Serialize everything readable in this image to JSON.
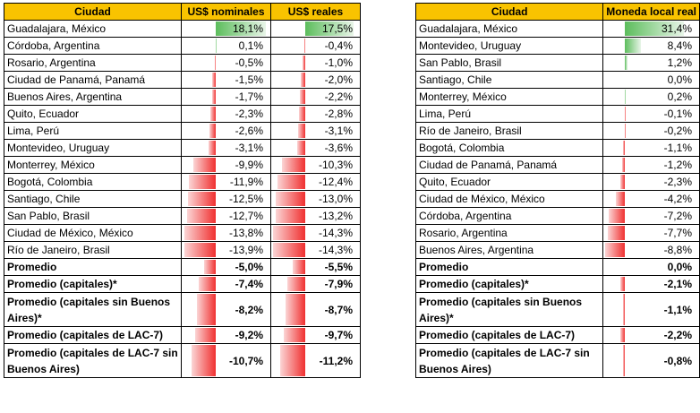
{
  "table1": {
    "headers": [
      "Ciudad",
      "US$ nominales",
      "US$ reales"
    ],
    "rows": [
      {
        "city": "Guadalajara, México",
        "nominal": "18,1%",
        "nominal_v": 18.1,
        "real": "17,5%",
        "real_v": 17.5
      },
      {
        "city": "Córdoba, Argentina",
        "nominal": "0,1%",
        "nominal_v": 0.1,
        "real": "-0,4%",
        "real_v": -0.4
      },
      {
        "city": "Rosario, Argentina",
        "nominal": "-0,5%",
        "nominal_v": -0.5,
        "real": "-1,0%",
        "real_v": -1.0
      },
      {
        "city": "Ciudad de Panamá, Panamá",
        "nominal": "-1,5%",
        "nominal_v": -1.5,
        "real": "-2,0%",
        "real_v": -2.0
      },
      {
        "city": "Buenos Aires, Argentina",
        "nominal": "-1,7%",
        "nominal_v": -1.7,
        "real": "-2,2%",
        "real_v": -2.2
      },
      {
        "city": "Quito, Ecuador",
        "nominal": "-2,3%",
        "nominal_v": -2.3,
        "real": "-2,8%",
        "real_v": -2.8
      },
      {
        "city": "Lima, Perú",
        "nominal": "-2,6%",
        "nominal_v": -2.6,
        "real": "-3,1%",
        "real_v": -3.1
      },
      {
        "city": "Montevideo, Uruguay",
        "nominal": "-3,1%",
        "nominal_v": -3.1,
        "real": "-3,6%",
        "real_v": -3.6
      },
      {
        "city": "Monterrey, México",
        "nominal": "-9,9%",
        "nominal_v": -9.9,
        "real": "-10,3%",
        "real_v": -10.3
      },
      {
        "city": "Bogotá, Colombia",
        "nominal": "-11,9%",
        "nominal_v": -11.9,
        "real": "-12,4%",
        "real_v": -12.4
      },
      {
        "city": "Santiago, Chile",
        "nominal": "-12,5%",
        "nominal_v": -12.5,
        "real": "-13,0%",
        "real_v": -13.0
      },
      {
        "city": "San Pablo, Brasil",
        "nominal": "-12,7%",
        "nominal_v": -12.7,
        "real": "-13,2%",
        "real_v": -13.2
      },
      {
        "city": "Ciudad de México, México",
        "nominal": "-13,8%",
        "nominal_v": -13.8,
        "real": "-14,3%",
        "real_v": -14.3
      },
      {
        "city": "Río de Janeiro, Brasil",
        "nominal": "-13,9%",
        "nominal_v": -13.9,
        "real": "-14,3%",
        "real_v": -14.3
      },
      {
        "city": "Promedio",
        "nominal": "-5,0%",
        "nominal_v": -5.0,
        "real": "-5,5%",
        "real_v": -5.5,
        "bold": true
      },
      {
        "city": "Promedio (capitales)*",
        "nominal": "-7,4%",
        "nominal_v": -7.4,
        "real": "-7,9%",
        "real_v": -7.9,
        "bold": true
      },
      {
        "city": "Promedio (capitales sin Buenos Aires)*",
        "nominal": "-8,2%",
        "nominal_v": -8.2,
        "real": "-8,7%",
        "real_v": -8.7,
        "bold": true,
        "tall": true
      },
      {
        "city": "Promedio (capitales de LAC-7)",
        "nominal": "-9,2%",
        "nominal_v": -9.2,
        "real": "-9,7%",
        "real_v": -9.7,
        "bold": true
      },
      {
        "city": "Promedio (capitales de LAC-7 sin Buenos Aires)",
        "nominal": "-10,7%",
        "nominal_v": -10.7,
        "real": "-11,2%",
        "real_v": -11.2,
        "bold": true,
        "tall": true
      }
    ]
  },
  "table2": {
    "headers": [
      "Ciudad",
      "Moneda local real"
    ],
    "rows": [
      {
        "city": "Guadalajara, México",
        "value": "31,4%",
        "v": 31.4
      },
      {
        "city": "Montevideo, Uruguay",
        "value": "8,4%",
        "v": 8.4
      },
      {
        "city": "San Pablo, Brasil",
        "value": "1,2%",
        "v": 1.2
      },
      {
        "city": "Santiago, Chile",
        "value": "0,0%",
        "v": 0.0
      },
      {
        "city": "Monterrey, México",
        "value": "0,2%",
        "v": 0.2
      },
      {
        "city": "Lima, Perú",
        "value": "-0,1%",
        "v": -0.1
      },
      {
        "city": "Río de Janeiro, Brasil",
        "value": "-0,2%",
        "v": -0.2
      },
      {
        "city": "Bogotá, Colombia",
        "value": "-1,1%",
        "v": -1.1
      },
      {
        "city": "Ciudad de Panamá, Panamá",
        "value": "-1,2%",
        "v": -1.2
      },
      {
        "city": "Quito, Ecuador",
        "value": "-2,3%",
        "v": -2.3
      },
      {
        "city": "Ciudad de México, México",
        "value": "-4,2%",
        "v": -4.2
      },
      {
        "city": "Córdoba, Argentina",
        "value": "-7,2%",
        "v": -7.2
      },
      {
        "city": "Rosario, Argentina",
        "value": "-7,7%",
        "v": -7.7
      },
      {
        "city": "Buenos Aires, Argentina",
        "value": "-8,8%",
        "v": -8.8
      },
      {
        "city": "Promedio",
        "value": "0,0%",
        "v": 0.0,
        "bold": true
      },
      {
        "city": "Promedio (capitales)*",
        "value": "-2,1%",
        "v": -2.1,
        "bold": true
      },
      {
        "city": "Promedio (capitales sin Buenos Aires)*",
        "value": "-1,1%",
        "v": -1.1,
        "bold": true,
        "tall": true
      },
      {
        "city": "Promedio (capitales de LAC-7)",
        "value": "-2,2%",
        "v": -2.2,
        "bold": true
      },
      {
        "city": "Promedio (capitales de LAC-7 sin Buenos Aires)",
        "value": "-0,8%",
        "v": -0.8,
        "bold": true,
        "tall": true
      }
    ]
  }
}
